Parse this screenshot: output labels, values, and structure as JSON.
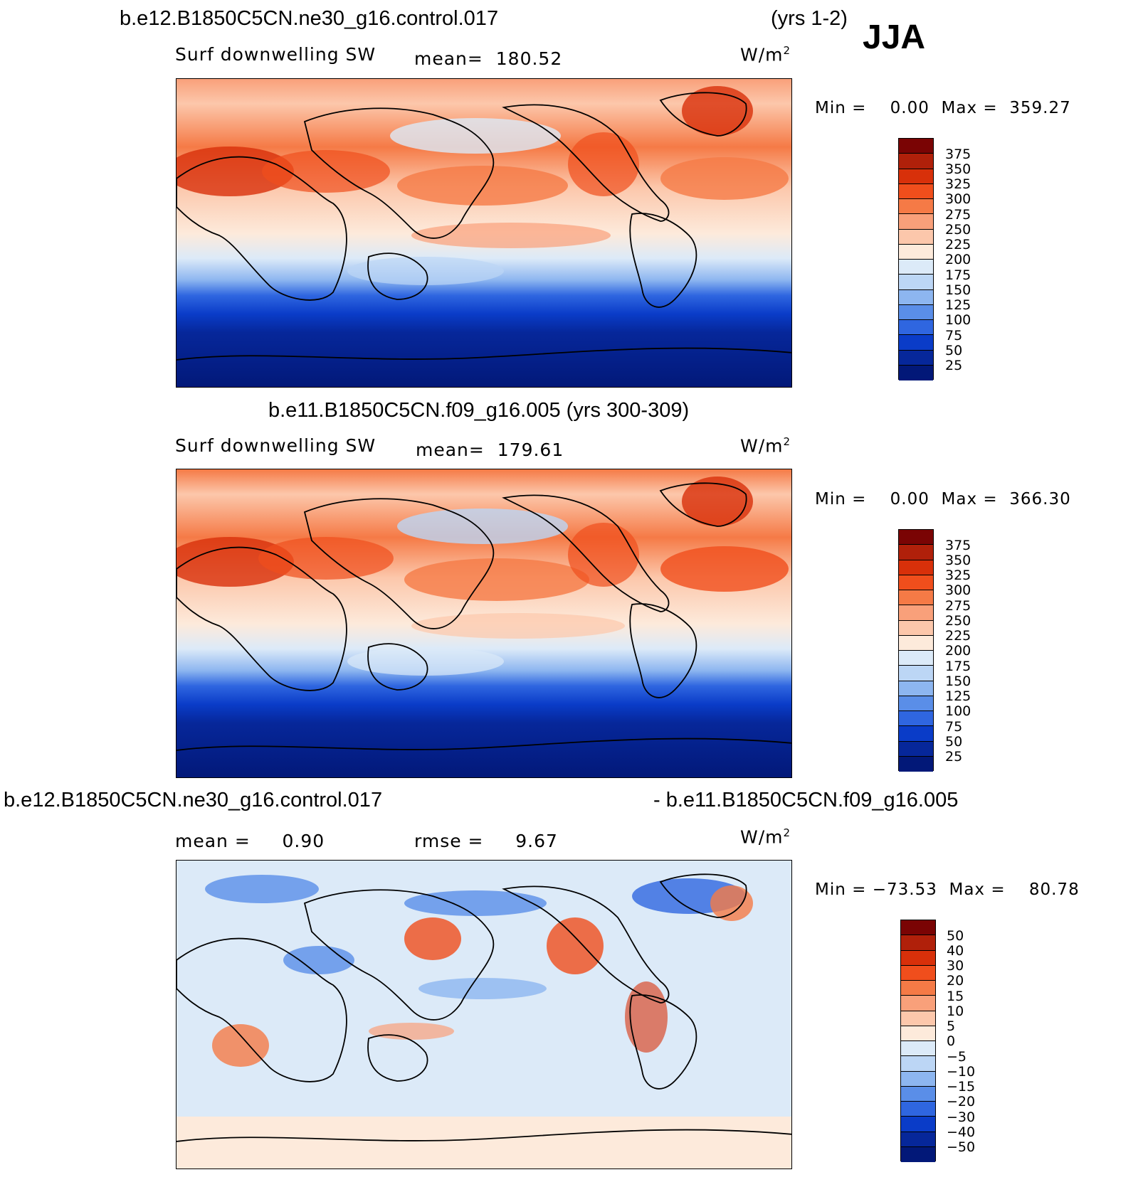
{
  "header": {
    "case_title": "b.e12.B1850C5CN.ne30_g16.control.017",
    "years": "(yrs 1-2)",
    "season": "JJA"
  },
  "panels": [
    {
      "id": "p1",
      "subtitle": "Surf  downwelling  SW",
      "mean_label": "mean=",
      "mean_value": "180.52",
      "units": "W/m",
      "units_sup": "2",
      "min_label": "Min  =",
      "min_value": "0.00",
      "max_label": "Max  =",
      "max_value": "359.27"
    },
    {
      "id": "p2",
      "title": "b.e11.B1850C5CN.f09_g16.005 (yrs 300-309)",
      "subtitle": "Surf  downwelling  SW",
      "mean_label": "mean=",
      "mean_value": "179.61",
      "units": "W/m",
      "units_sup": "2",
      "min_label": "Min  =",
      "min_value": "0.00",
      "max_label": "Max  =",
      "max_value": "366.30"
    },
    {
      "id": "p3",
      "title_left": "b.e12.B1850C5CN.ne30_g16.control.017",
      "title_right": "- b.e11.B1850C5CN.f09_g16.005",
      "mean_label": "mean  =",
      "mean_value": "0.90",
      "rmse_label": "rmse  =",
      "rmse_value": "9.67",
      "units": "W/m",
      "units_sup": "2",
      "min_label": "Min  =",
      "min_value": "−73.53",
      "max_label": "Max  =",
      "max_value": "80.78"
    }
  ],
  "colorbars": {
    "absolute": {
      "labels": [
        "375",
        "350",
        "325",
        "300",
        "275",
        "250",
        "225",
        "200",
        "175",
        "150",
        "125",
        "100",
        "75",
        "50",
        "25"
      ],
      "colors": [
        "#7a0404",
        "#b0200a",
        "#d8300a",
        "#f04e1c",
        "#f57a46",
        "#f9a07a",
        "#fcc7ab",
        "#fdeadb",
        "#dceaf8",
        "#bcd6f5",
        "#8db6f0",
        "#5a8ee8",
        "#2f66e0",
        "#0a3cc8",
        "#06279a",
        "#021878"
      ]
    },
    "difference": {
      "labels": [
        "50",
        "40",
        "30",
        "20",
        "15",
        "10",
        "5",
        "0",
        "−5",
        "−10",
        "−15",
        "−20",
        "−30",
        "−40",
        "−50"
      ],
      "colors": [
        "#7a0404",
        "#b0200a",
        "#d8300a",
        "#f04e1c",
        "#f57a46",
        "#f9a07a",
        "#fcc7ab",
        "#fdeadb",
        "#dceaf8",
        "#bcd6f5",
        "#8db6f0",
        "#5a8ee8",
        "#2f66e0",
        "#0a3cc8",
        "#06279a",
        "#021878"
      ]
    }
  }
}
